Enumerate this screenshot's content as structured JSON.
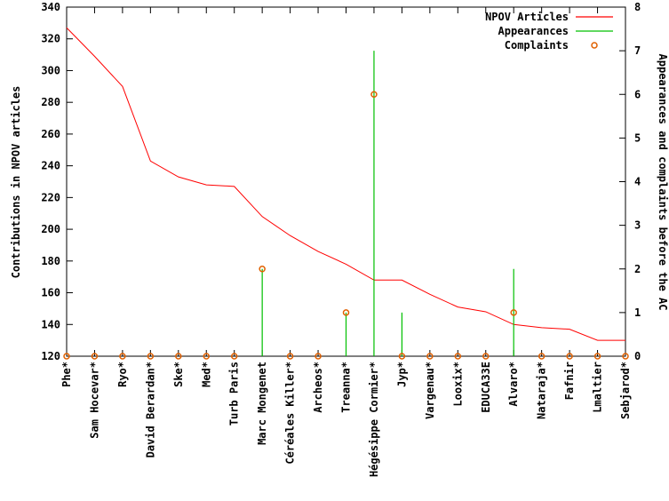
{
  "chart_data": {
    "type": "line",
    "title": "",
    "ylabel": "Contributions in NPOV articles",
    "y2label": "Appearances and complaints before the AC",
    "ylim": [
      120,
      340
    ],
    "yticks": [
      120,
      140,
      160,
      180,
      200,
      220,
      240,
      260,
      280,
      300,
      320,
      340
    ],
    "y2lim": [
      0,
      8
    ],
    "y2ticks": [
      0,
      1,
      2,
      3,
      4,
      5,
      6,
      7,
      8
    ],
    "grid": false,
    "legend_position": "top-right",
    "categories": [
      "Phe*",
      "Sam Hocevar*",
      "Ryo*",
      "David Berardan*",
      "Ske*",
      "Med*",
      "Turb Paris",
      "Marc Mongenet",
      "Céréales Killer*",
      "Archeos*",
      "Treanna*",
      "Hégésippe Cormier*",
      "Jyp*",
      "Vargenau*",
      "Looxix*",
      "EDUCA33E",
      "Alvaro*",
      "Nataraja*",
      "Fafnir",
      "Lmaltier",
      "Sebjarod*"
    ],
    "series": [
      {
        "name": "NPOV Articles",
        "kind": "line",
        "axis": "left",
        "color": "#ff0000",
        "values": [
          327,
          309,
          290,
          243,
          233,
          228,
          227,
          208,
          196,
          186,
          178,
          168,
          168,
          159,
          151,
          148,
          140,
          138,
          137,
          130,
          130
        ]
      },
      {
        "name": "Appearances",
        "kind": "impulses",
        "axis": "right",
        "color": "#00c000",
        "values": [
          0,
          0,
          0,
          0,
          0,
          0,
          0,
          2,
          0,
          0,
          1,
          7,
          1,
          0,
          0,
          0,
          2,
          0,
          0,
          0,
          0
        ]
      },
      {
        "name": "Complaints",
        "kind": "points",
        "axis": "right",
        "color": "#e06000",
        "values": [
          0,
          0,
          0,
          0,
          0,
          0,
          0,
          2,
          0,
          0,
          1,
          6,
          0,
          0,
          0,
          0,
          1,
          0,
          0,
          0,
          0
        ]
      }
    ]
  }
}
